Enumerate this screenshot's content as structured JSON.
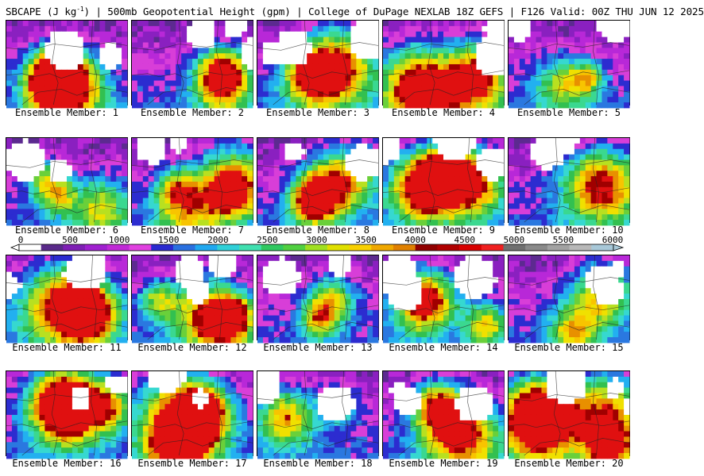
{
  "header": {
    "title_pre": "SBCAPE (J kg",
    "title_sup": "-1",
    "title_post": ") | 500mb Geopotential Height (gpm) | College of DuPage NEXLAB 18Z GEFS | F126 Valid: 00Z THU JUN 12 2025"
  },
  "colorbar": {
    "ticks": [
      "0",
      "500",
      "1000",
      "1500",
      "2000",
      "2500",
      "3000",
      "3500",
      "4000",
      "4500",
      "5000",
      "5500",
      "6000"
    ],
    "colors": [
      "#ffffff",
      "#5a2a8a",
      "#7f1fb5",
      "#a020d0",
      "#c02ad6",
      "#e040e0",
      "#2a2ad0",
      "#2a70e0",
      "#20a8f0",
      "#30d0d8",
      "#40e0b0",
      "#30c860",
      "#50d040",
      "#a0e020",
      "#e0e000",
      "#f8d000",
      "#f0a800",
      "#e08000",
      "#900000",
      "#b00000",
      "#d80000",
      "#f02020",
      "#707070",
      "#8a8a8a",
      "#a2a2a2",
      "#b8b8b8",
      "#a8c8d8"
    ]
  },
  "members": [
    {
      "label": "Ensemble Member: 1"
    },
    {
      "label": "Ensemble Member: 2"
    },
    {
      "label": "Ensemble Member: 3"
    },
    {
      "label": "Ensemble Member: 4"
    },
    {
      "label": "Ensemble Member: 5"
    },
    {
      "label": "Ensemble Member: 6"
    },
    {
      "label": "Ensemble Member: 7"
    },
    {
      "label": "Ensemble Member: 8"
    },
    {
      "label": "Ensemble Member: 9"
    },
    {
      "label": "Ensemble Member: 10"
    },
    {
      "label": "Ensemble Member: 11"
    },
    {
      "label": "Ensemble Member: 12"
    },
    {
      "label": "Ensemble Member: 13"
    },
    {
      "label": "Ensemble Member: 14"
    },
    {
      "label": "Ensemble Member: 15"
    },
    {
      "label": "Ensemble Member: 16"
    },
    {
      "label": "Ensemble Member: 17"
    },
    {
      "label": "Ensemble Member: 18"
    },
    {
      "label": "Ensemble Member: 19"
    },
    {
      "label": "Ensemble Member: 20"
    }
  ]
}
